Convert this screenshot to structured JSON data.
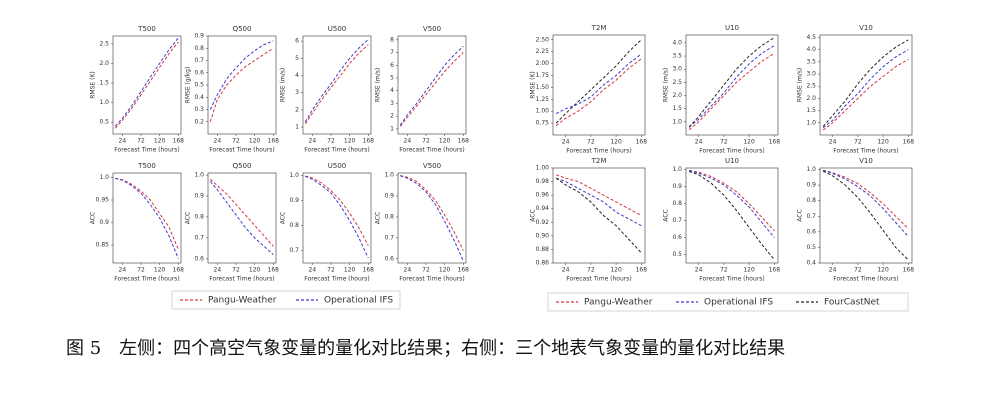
{
  "chart_data": [
    {
      "type": "line",
      "title": "T500",
      "xlabel": "Forecast Time (hours)",
      "ylabel": "RMSE (K)",
      "x": [
        6,
        24,
        48,
        72,
        96,
        120,
        144,
        168
      ],
      "xlim": [
        0,
        175
      ],
      "xticks": [
        24,
        72,
        120,
        168
      ],
      "ylim": [
        0.2,
        2.7
      ],
      "yticks": [
        0.5,
        {
          "value": 1,
          "label": "1.0"
        },
        1.5,
        {
          "value": 2,
          "label": "2.0"
        },
        2.5
      ],
      "series": [
        {
          "name": "Pangu-Weather",
          "color": "#d9343a",
          "values": [
            0.35,
            0.55,
            0.85,
            1.2,
            1.55,
            1.9,
            2.25,
            2.55
          ]
        },
        {
          "name": "Operational IFS",
          "color": "#3a3ad0",
          "values": [
            0.4,
            0.6,
            0.92,
            1.28,
            1.65,
            2.0,
            2.35,
            2.65
          ]
        }
      ]
    },
    {
      "type": "line",
      "title": "Q500",
      "xlabel": "Forecast Time (hours)",
      "ylabel": "RMSE (g/kg)",
      "x": [
        6,
        24,
        48,
        72,
        96,
        120,
        144,
        168
      ],
      "xlim": [
        0,
        175
      ],
      "xticks": [
        24,
        72,
        120,
        168
      ],
      "ylim": [
        0.1,
        0.9
      ],
      "yticks": [
        0.2,
        0.3,
        0.4,
        0.5,
        0.6,
        0.7,
        0.8,
        0.9
      ],
      "series": [
        {
          "color": "#d9343a",
          "values": [
            0.2,
            0.38,
            0.5,
            0.58,
            0.65,
            0.7,
            0.75,
            0.8
          ]
        },
        {
          "color": "#3a3ad0",
          "values": [
            0.3,
            0.42,
            0.55,
            0.64,
            0.72,
            0.78,
            0.83,
            0.86
          ]
        }
      ]
    },
    {
      "type": "line",
      "title": "U500",
      "xlabel": "Forecast Time (hours)",
      "ylabel": "RMSE (m/s)",
      "x": [
        6,
        24,
        48,
        72,
        96,
        120,
        144,
        168
      ],
      "xlim": [
        0,
        175
      ],
      "xticks": [
        24,
        72,
        120,
        168
      ],
      "ylim": [
        0.6,
        6.3
      ],
      "yticks": [
        1,
        2,
        3,
        4,
        5,
        6
      ],
      "series": [
        {
          "color": "#d9343a",
          "values": [
            1.2,
            1.8,
            2.6,
            3.3,
            4.0,
            4.7,
            5.3,
            5.8
          ]
        },
        {
          "color": "#3a3ad0",
          "values": [
            1.3,
            2.0,
            2.8,
            3.5,
            4.3,
            5.0,
            5.6,
            6.1
          ]
        }
      ]
    },
    {
      "type": "line",
      "title": "V500",
      "xlabel": "Forecast Time (hours)",
      "ylabel": "RMSE (m/s)",
      "x": [
        6,
        24,
        48,
        72,
        96,
        120,
        144,
        168
      ],
      "xlim": [
        0,
        175
      ],
      "xticks": [
        24,
        72,
        120,
        168
      ],
      "ylim": [
        0.6,
        8.3
      ],
      "yticks": [
        1,
        2,
        3,
        4,
        5,
        6,
        7,
        8
      ],
      "series": [
        {
          "color": "#d9343a",
          "values": [
            1.2,
            1.9,
            2.8,
            3.7,
            4.6,
            5.5,
            6.3,
            7.0
          ]
        },
        {
          "color": "#3a3ad0",
          "values": [
            1.3,
            2.1,
            3.0,
            4.0,
            5.0,
            6.0,
            6.8,
            7.5
          ]
        }
      ]
    },
    {
      "type": "line",
      "title": "T500",
      "xlabel": "Forecast Time (hours)",
      "ylabel": "ACC",
      "x": [
        6,
        24,
        48,
        72,
        96,
        120,
        144,
        168
      ],
      "xlim": [
        0,
        175
      ],
      "xticks": [
        24,
        72,
        120,
        168
      ],
      "ylim": [
        0.81,
        1.01
      ],
      "yticks": [
        0.85,
        0.9,
        0.95,
        {
          "value": 1,
          "label": "1.0"
        }
      ],
      "series": [
        {
          "color": "#d9343a",
          "values": [
            0.998,
            0.995,
            0.985,
            0.97,
            0.95,
            0.92,
            0.89,
            0.84
          ]
        },
        {
          "color": "#3a3ad0",
          "values": [
            0.998,
            0.994,
            0.982,
            0.965,
            0.94,
            0.91,
            0.87,
            0.82
          ]
        }
      ]
    },
    {
      "type": "line",
      "title": "Q500",
      "xlabel": "Forecast Time (hours)",
      "ylabel": "ACC",
      "x": [
        6,
        24,
        48,
        72,
        96,
        120,
        144,
        168
      ],
      "xlim": [
        0,
        175
      ],
      "xticks": [
        24,
        72,
        120,
        168
      ],
      "ylim": [
        0.58,
        1.01
      ],
      "yticks": [
        0.6,
        0.7,
        0.8,
        0.9,
        {
          "value": 1,
          "label": "1.0"
        }
      ],
      "series": [
        {
          "color": "#d9343a",
          "values": [
            0.98,
            0.95,
            0.91,
            0.86,
            0.81,
            0.76,
            0.71,
            0.66
          ]
        },
        {
          "color": "#3a3ad0",
          "values": [
            0.97,
            0.93,
            0.87,
            0.81,
            0.75,
            0.7,
            0.66,
            0.62
          ]
        }
      ]
    },
    {
      "type": "line",
      "title": "U500",
      "xlabel": "Forecast Time (hours)",
      "ylabel": "ACC",
      "x": [
        6,
        24,
        48,
        72,
        96,
        120,
        144,
        168
      ],
      "xlim": [
        0,
        175
      ],
      "xticks": [
        24,
        72,
        120,
        168
      ],
      "ylim": [
        0.65,
        1.01
      ],
      "yticks": [
        0.7,
        0.8,
        0.9,
        {
          "value": 1,
          "label": "1.0"
        }
      ],
      "series": [
        {
          "color": "#d9343a",
          "values": [
            0.998,
            0.99,
            0.97,
            0.94,
            0.9,
            0.85,
            0.79,
            0.72
          ]
        },
        {
          "color": "#3a3ad0",
          "values": [
            0.997,
            0.985,
            0.96,
            0.93,
            0.88,
            0.82,
            0.75,
            0.67
          ]
        }
      ]
    },
    {
      "type": "line",
      "title": "V500",
      "xlabel": "Forecast Time (hours)",
      "ylabel": "ACC",
      "x": [
        6,
        24,
        48,
        72,
        96,
        120,
        144,
        168
      ],
      "xlim": [
        0,
        175
      ],
      "xticks": [
        24,
        72,
        120,
        168
      ],
      "ylim": [
        0.58,
        1.01
      ],
      "yticks": [
        0.6,
        0.7,
        0.8,
        0.9,
        {
          "value": 1,
          "label": "1.0"
        }
      ],
      "series": [
        {
          "color": "#d9343a",
          "values": [
            0.998,
            0.99,
            0.97,
            0.93,
            0.88,
            0.81,
            0.73,
            0.64
          ]
        },
        {
          "color": "#3a3ad0",
          "values": [
            0.997,
            0.985,
            0.96,
            0.92,
            0.86,
            0.78,
            0.69,
            0.59
          ]
        }
      ]
    },
    {
      "type": "line",
      "title": "T2M",
      "xlabel": "Forecast Time (hours)",
      "ylabel": "RMSE (K)",
      "x": [
        6,
        24,
        48,
        72,
        96,
        120,
        144,
        168
      ],
      "xlim": [
        0,
        175
      ],
      "xticks": [
        24,
        72,
        120,
        168
      ],
      "ylim": [
        0.5,
        2.6
      ],
      "yticks": [
        0.75,
        {
          "value": 1,
          "label": "1.00"
        },
        1.25,
        {
          "value": 1.5,
          "label": "1.50"
        },
        1.75,
        {
          "value": 2,
          "label": "2.00"
        },
        2.25,
        {
          "value": 2.5,
          "label": "2.50"
        }
      ],
      "series": [
        {
          "name": "Pangu-Weather",
          "color": "#d9343a",
          "values": [
            0.7,
            0.85,
            1.0,
            1.2,
            1.45,
            1.65,
            1.9,
            2.1
          ]
        },
        {
          "name": "Operational IFS",
          "color": "#3a3ad0",
          "values": [
            0.95,
            1.05,
            1.15,
            1.3,
            1.55,
            1.75,
            2.0,
            2.2
          ]
        },
        {
          "name": "FourCastNet",
          "color": "#222222",
          "values": [
            0.75,
            0.95,
            1.2,
            1.45,
            1.7,
            1.95,
            2.25,
            2.5
          ]
        }
      ]
    },
    {
      "type": "line",
      "title": "U10",
      "xlabel": "Forecast Time (hours)",
      "ylabel": "RMSE (m/s)",
      "x": [
        6,
        24,
        48,
        72,
        96,
        120,
        144,
        168
      ],
      "xlim": [
        0,
        175
      ],
      "xticks": [
        24,
        72,
        120,
        168
      ],
      "ylim": [
        0.5,
        4.3
      ],
      "yticks": [
        {
          "value": 1,
          "label": "1.0"
        },
        1.5,
        {
          "value": 2,
          "label": "2.0"
        },
        2.5,
        {
          "value": 3,
          "label": "3.0"
        },
        3.5,
        {
          "value": 4,
          "label": "4.0"
        }
      ],
      "series": [
        {
          "color": "#d9343a",
          "values": [
            0.7,
            1.0,
            1.5,
            2.0,
            2.5,
            2.9,
            3.3,
            3.6
          ]
        },
        {
          "color": "#3a3ad0",
          "values": [
            0.8,
            1.1,
            1.6,
            2.1,
            2.7,
            3.2,
            3.6,
            3.9
          ]
        },
        {
          "color": "#222222",
          "values": [
            0.8,
            1.2,
            1.8,
            2.4,
            3.0,
            3.5,
            3.9,
            4.2
          ]
        }
      ]
    },
    {
      "type": "line",
      "title": "V10",
      "xlabel": "Forecast Time (hours)",
      "ylabel": "RMSE (m/s)",
      "x": [
        6,
        24,
        48,
        72,
        96,
        120,
        144,
        168
      ],
      "xlim": [
        0,
        175
      ],
      "xticks": [
        24,
        72,
        120,
        168
      ],
      "ylim": [
        0.5,
        4.6
      ],
      "yticks": [
        {
          "value": 1,
          "label": "1.0"
        },
        1.5,
        {
          "value": 2,
          "label": "2.0"
        },
        2.5,
        {
          "value": 3,
          "label": "3.0"
        },
        3.5,
        {
          "value": 4,
          "label": "4.0"
        },
        4.5
      ],
      "series": [
        {
          "color": "#d9343a",
          "values": [
            0.7,
            1.0,
            1.5,
            2.0,
            2.5,
            2.9,
            3.3,
            3.6
          ]
        },
        {
          "color": "#3a3ad0",
          "values": [
            0.8,
            1.1,
            1.7,
            2.2,
            2.8,
            3.3,
            3.7,
            4.0
          ]
        },
        {
          "color": "#222222",
          "values": [
            0.85,
            1.3,
            1.9,
            2.6,
            3.2,
            3.7,
            4.1,
            4.4
          ]
        }
      ]
    },
    {
      "type": "line",
      "title": "T2M",
      "xlabel": "Forecast Time (hours)",
      "ylabel": "ACC",
      "x": [
        6,
        24,
        48,
        72,
        96,
        120,
        144,
        168
      ],
      "xlim": [
        0,
        175
      ],
      "xticks": [
        24,
        72,
        120,
        168
      ],
      "ylim": [
        0.86,
        1.0
      ],
      "yticks": [
        0.86,
        0.88,
        {
          "value": 0.9,
          "label": "0.90"
        },
        0.92,
        0.94,
        0.96,
        0.98,
        {
          "value": 1,
          "label": "1.00"
        }
      ],
      "series": [
        {
          "color": "#d9343a",
          "values": [
            0.99,
            0.985,
            0.98,
            0.97,
            0.96,
            0.95,
            0.94,
            0.93
          ]
        },
        {
          "color": "#3a3ad0",
          "values": [
            0.985,
            0.98,
            0.97,
            0.96,
            0.95,
            0.935,
            0.925,
            0.915
          ]
        },
        {
          "color": "#222222",
          "values": [
            0.985,
            0.975,
            0.965,
            0.95,
            0.93,
            0.915,
            0.895,
            0.875
          ]
        }
      ]
    },
    {
      "type": "line",
      "title": "U10",
      "xlabel": "Forecast Time (hours)",
      "ylabel": "ACC",
      "x": [
        6,
        24,
        48,
        72,
        96,
        120,
        144,
        168
      ],
      "xlim": [
        0,
        175
      ],
      "xticks": [
        24,
        72,
        120,
        168
      ],
      "ylim": [
        0.45,
        1.01
      ],
      "yticks": [
        0.5,
        0.6,
        0.7,
        0.8,
        0.9,
        {
          "value": 1,
          "label": "1.0"
        }
      ],
      "series": [
        {
          "color": "#d9343a",
          "values": [
            0.995,
            0.985,
            0.96,
            0.92,
            0.87,
            0.8,
            0.72,
            0.64
          ]
        },
        {
          "color": "#3a3ad0",
          "values": [
            0.995,
            0.98,
            0.95,
            0.91,
            0.85,
            0.78,
            0.69,
            0.6
          ]
        },
        {
          "color": "#222222",
          "values": [
            0.99,
            0.97,
            0.92,
            0.85,
            0.76,
            0.66,
            0.56,
            0.47
          ]
        }
      ]
    },
    {
      "type": "line",
      "title": "V10",
      "xlabel": "Forecast Time (hours)",
      "ylabel": "ACC",
      "x": [
        6,
        24,
        48,
        72,
        96,
        120,
        144,
        168
      ],
      "xlim": [
        0,
        175
      ],
      "xticks": [
        24,
        72,
        120,
        168
      ],
      "ylim": [
        0.4,
        1.01
      ],
      "yticks": [
        0.4,
        0.5,
        0.6,
        0.7,
        0.8,
        0.9,
        {
          "value": 1,
          "label": "1.0"
        }
      ],
      "series": [
        {
          "color": "#d9343a",
          "values": [
            0.995,
            0.98,
            0.95,
            0.91,
            0.85,
            0.78,
            0.7,
            0.62
          ]
        },
        {
          "color": "#3a3ad0",
          "values": [
            0.995,
            0.975,
            0.94,
            0.89,
            0.83,
            0.75,
            0.66,
            0.57
          ]
        },
        {
          "color": "#222222",
          "values": [
            0.99,
            0.96,
            0.9,
            0.82,
            0.72,
            0.61,
            0.5,
            0.42
          ]
        }
      ]
    }
  ],
  "caption": "图 5　左侧：四个高空气象变量的量化对比结果；右侧：三个地表气象变量的量化对比结果"
}
